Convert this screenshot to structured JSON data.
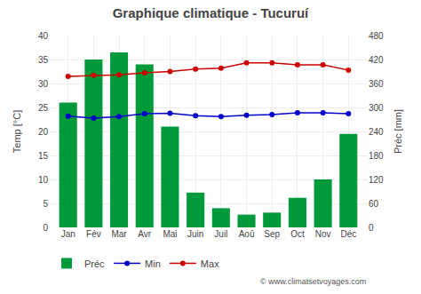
{
  "chart_data": {
    "type": "bar",
    "title": "Graphique climatique - Tucuruí",
    "categories": [
      "Jan",
      "Fév",
      "Mar",
      "Avr",
      "Mai",
      "Juin",
      "Juil",
      "Aoû",
      "Sep",
      "Oct",
      "Nov",
      "Déc"
    ],
    "series": [
      {
        "name": "Préc",
        "type": "bar",
        "axis": "y2",
        "color": "#009a3a",
        "values": [
          312,
          420,
          438,
          408,
          252,
          87,
          48,
          32,
          37,
          74,
          120,
          234
        ]
      },
      {
        "name": "Min",
        "type": "line",
        "marker": "circle",
        "color": "#0000cc",
        "values": [
          23.2,
          22.8,
          23.1,
          23.7,
          23.8,
          23.3,
          23.1,
          23.4,
          23.5,
          23.9,
          23.9,
          23.7
        ]
      },
      {
        "name": "Max",
        "type": "line",
        "marker": "circle",
        "color": "#cc0000",
        "values": [
          31.5,
          31.7,
          31.8,
          32.2,
          32.5,
          33.0,
          33.2,
          34.3,
          34.3,
          33.9,
          33.9,
          32.8
        ]
      }
    ],
    "ylabel": "Temp [°C]",
    "y2label": "Préc [mm]",
    "ylim": [
      0,
      40
    ],
    "yticks": [
      0,
      5,
      10,
      15,
      20,
      25,
      30,
      35,
      40
    ],
    "y2lim": [
      0,
      480
    ],
    "y2ticks": [
      0,
      60,
      120,
      180,
      240,
      300,
      360,
      420,
      480
    ],
    "grid": true,
    "legend": "bottom",
    "annotations": [
      "© www.climatsetvoyages.com"
    ]
  }
}
